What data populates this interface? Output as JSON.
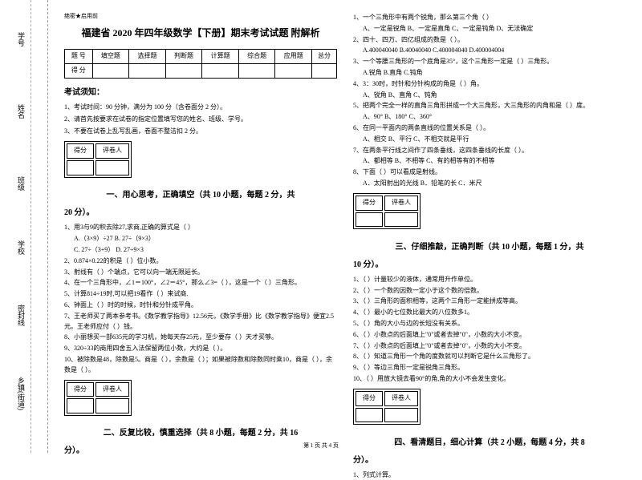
{
  "binding": {
    "labels": [
      "学号",
      "姓名",
      "班级",
      "学校",
      "密封线",
      "乡镇(街道)"
    ],
    "inside": [
      "内",
      "线",
      "封",
      "密"
    ]
  },
  "secret": "绝密★启用前",
  "title": "福建省 2020 年四年级数学【下册】期末考试试题 附解析",
  "header": {
    "cols": [
      "题 号",
      "填空题",
      "选择题",
      "判断题",
      "计算题",
      "综合题",
      "应用题",
      "总分"
    ],
    "row2": "得 分"
  },
  "notice": {
    "title": "考试须知：",
    "items": [
      "1、考试时间：90 分钟，满分为 100 分（含卷面分 2 分）。",
      "2、请首先按要求在试卷的指定位置填写您的姓名、班级、学号。",
      "3、不要在试卷上乱写乱画，卷面不整洁扣 2 分。"
    ]
  },
  "scorebox": {
    "c1": "得分",
    "c2": "评卷人"
  },
  "sec1": {
    "title": "一、用心思考，正确填空（共 10 小题，每题 2 分，共",
    "title2": "20 分）。",
    "q1": "1、用3与9的积去除27,求商,正确的算式是（    ）",
    "q1a": "A.（3×9）÷27          B. 27÷（9×3）",
    "q1b": "C. 27÷（3+9）          D. 27÷9×3",
    "q2": "2、0.874×0.22的积是（    ）位小数。",
    "q3": "3、射线有（    ）个端点，它可以向一端无限延长。",
    "q4": "4、在一个三角形中，∠1＝100°，∠2＝45°，那么∠3=（    ），这是一个（    ）三角形。",
    "q5": "5、计算814÷19时,可以把19看作（    ）来试商.",
    "q6": "6、钟面上（    ）时的时候，时针和分针成平角。",
    "q7": "7、王老师买了两本参考书。《数学教学指导》12.56元，《数学手册》比《数学教学指导》便宜2.5元。王老师应付（    ）钱。",
    "q8": "8、小丽想买一部635元的学习机，她每天存25元，至少要存（    ）天才买够。",
    "q9": "9、320÷33的商用四舍五入法保留两位小数，大约是（    ）。",
    "q10": "10、被除数是48，除数是5。商是（    ），余数是（    ）；如果被除数和除数同时乘10，商是（    ），余数是（    ）。"
  },
  "sec2": {
    "title": "二、反复比较，慎重选择（共 8 小题，每题 2 分，共 16",
    "title2": "分）。",
    "q1": "1、一个三角形中有两个锐角，那么第三个角（    ）",
    "q1o": "A、一定是锐角    B、一定是直角    C、一定是钝角    D、无法确定",
    "q2": "2、四十、四万、四亿组成的数是（    ）。",
    "q2o": "A.400040040  B.40040040  C.400004040  D.400004004",
    "q3": "3、一个等腰三角形的一个底角是35°，这个三角形一定是（    ）三角形。",
    "q3o": "A.锐角        B.直角        C.钝角",
    "q4": "4、3：30时，时针和分针构成的角是（    ）角。",
    "q4o": "A、锐角        B、直角        C、钝角",
    "q5": "5、把两个完全一样的直角三角形拼成一个大三角形，大三角形的内角和是（    ）度。",
    "q5o": "A、90°        B、180°        C、360°",
    "q6": "6、在同一平面内的两条直线的位置关系是（    ）。",
    "q6o": "A、相交     B、平行     C、不相交就是平行",
    "q7": "7、在两条平行线之间作了四条垂线，这四条垂线的长度（    ）。",
    "q7o": "A、都相等     B、不相等     C、有的相等有的不相等",
    "q8": "8、下面（    ）可以看成是射线。",
    "q8o": "A．太阳射出的光线    B．铅笔的长    C．米尺"
  },
  "sec3": {
    "title": "三、仔细推敲，正确判断（共 10 小题，每题 1 分，共",
    "title2": "10 分）。",
    "q1": "1、（    ）计量较少的液体，通常用升作单位。",
    "q2": "2、（    ）一个数的因数一定小于这个数的倍数。",
    "q3": "3、（    ）三角形的面积相等，这两个三角形一定能拼成等高。",
    "q4": "4、（    ）最小的七位数比最大的八位数多1。",
    "q5": "5、（    ）角的大小与边的长短没有关系。",
    "q6": "6、（    ）小数点的后面填上\"0\"或者去掉\"0\"，小数的大小不变。",
    "q7": "7、（    ）小数点的后面填上\"0\"或者去掉\"0\"，小数的大小不变。",
    "q8": "8、（    ）知道三角形一个角的度数就可以判断它是什么三角形了。",
    "q9": "9、（    ）等边三角形一定是锐角三角形。",
    "q10": "10、（    ）用放大镜去看90°的角,角的大小不会发生变化。"
  },
  "sec4": {
    "title": "四、看清题目，细心计算（共 2 小题，每题 4 分，共 8",
    "title2": "分）。",
    "q1": "1、列式计算。"
  },
  "footer": "第 1 页 共 4 页"
}
